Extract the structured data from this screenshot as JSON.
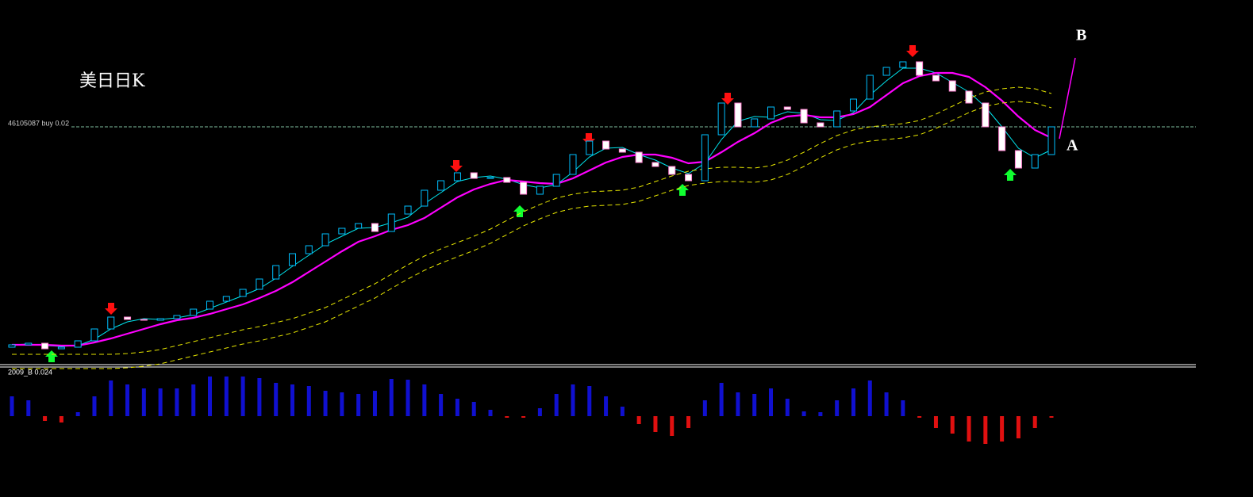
{
  "chart_data": [
    {
      "type": "candlestick",
      "annotations": [
        "美日日K",
        "A",
        "B"
      ],
      "order_label": "46105087 buy 0.02",
      "order_price": 300,
      "ylim": [
        0,
        460
      ],
      "up_color": "#00bfff",
      "down_color": "#ff7fd0",
      "open": [
        22,
        25,
        27,
        20,
        22,
        30,
        45,
        60,
        57,
        56,
        58,
        62,
        70,
        80,
        86,
        95,
        108,
        125,
        140,
        150,
        165,
        172,
        178,
        168,
        190,
        200,
        220,
        232,
        242,
        235,
        236,
        230,
        215,
        225,
        240,
        265,
        282,
        272,
        268,
        255,
        250,
        240,
        232,
        290,
        330,
        300,
        310,
        325,
        322,
        305,
        300,
        320,
        335,
        365,
        375,
        382,
        365,
        358,
        345,
        330,
        300,
        270,
        248,
        265
      ],
      "close": [
        25,
        27,
        20,
        22,
        30,
        45,
        60,
        57,
        56,
        58,
        62,
        70,
        80,
        86,
        95,
        108,
        125,
        140,
        150,
        165,
        172,
        178,
        168,
        190,
        200,
        220,
        232,
        242,
        235,
        236,
        230,
        215,
        225,
        240,
        265,
        282,
        272,
        268,
        255,
        250,
        240,
        232,
        290,
        330,
        300,
        310,
        325,
        322,
        305,
        300,
        320,
        335,
        365,
        375,
        382,
        365,
        358,
        345,
        330,
        300,
        270,
        248,
        265,
        300
      ],
      "lines": [
        {
          "color": "#00e5ee",
          "style": "solid",
          "values": [
            25,
            26,
            24,
            23,
            24,
            32,
            45,
            54,
            58,
            57,
            59,
            63,
            71,
            79,
            87,
            96,
            109,
            124,
            138,
            152,
            162,
            172,
            173,
            179,
            186,
            203,
            217,
            231,
            236,
            238,
            234,
            227,
            223,
            227,
            243,
            262,
            273,
            274,
            265,
            258,
            248,
            241,
            254,
            284,
            307,
            313,
            312,
            319,
            317,
            309,
            308,
            318,
            340,
            358,
            374,
            374,
            368,
            356,
            344,
            325,
            300,
            273,
            261,
            271
          ]
        },
        {
          "color": "#ff00ff",
          "style": "thick",
          "values": [
            25,
            25,
            25,
            24,
            24,
            28,
            33,
            39,
            45,
            51,
            56,
            59,
            64,
            70,
            76,
            84,
            93,
            104,
            117,
            130,
            143,
            155,
            162,
            170,
            176,
            185,
            198,
            211,
            221,
            228,
            233,
            231,
            229,
            228,
            235,
            245,
            255,
            262,
            265,
            265,
            261,
            254,
            256,
            268,
            281,
            292,
            305,
            313,
            315,
            312,
            312,
            316,
            325,
            340,
            355,
            364,
            368,
            368,
            363,
            350,
            333,
            313,
            296,
            286
          ]
        },
        {
          "color": "#e6e600",
          "style": "dashed",
          "values": [
            13,
            13,
            13,
            13,
            13,
            13,
            13,
            14,
            16,
            19,
            24,
            29,
            34,
            39,
            44,
            48,
            53,
            58,
            65,
            72,
            82,
            92,
            102,
            114,
            126,
            137,
            146,
            154,
            162,
            171,
            182,
            193,
            202,
            210,
            215,
            218,
            219,
            220,
            224,
            231,
            238,
            244,
            247,
            249,
            249,
            248,
            251,
            258,
            268,
            279,
            289,
            296,
            300,
            302,
            304,
            308,
            316,
            326,
            336,
            344,
            348,
            350,
            348,
            342
          ]
        },
        {
          "color": "#e6e600",
          "style": "dashed",
          "values": [
            -5,
            -5,
            -5,
            -5,
            -5,
            -5,
            -5,
            -4,
            -2,
            1,
            6,
            11,
            16,
            21,
            26,
            30,
            35,
            40,
            47,
            54,
            64,
            74,
            84,
            96,
            108,
            119,
            128,
            136,
            144,
            153,
            164,
            175,
            184,
            192,
            197,
            200,
            201,
            202,
            206,
            213,
            220,
            226,
            229,
            231,
            231,
            230,
            233,
            240,
            250,
            261,
            271,
            278,
            282,
            284,
            286,
            290,
            298,
            308,
            318,
            326,
            330,
            332,
            330,
            324
          ]
        }
      ]
    },
    {
      "type": "bar",
      "title": "2009_B 0.024",
      "ylim": [
        -102,
        60
      ],
      "positive_color": "#1010d0",
      "negative_color": "#e01010",
      "values": [
        25,
        20,
        -6,
        -8,
        5,
        25,
        45,
        40,
        35,
        35,
        35,
        40,
        50,
        50,
        50,
        48,
        42,
        40,
        38,
        32,
        30,
        28,
        32,
        47,
        46,
        40,
        28,
        22,
        18,
        8,
        -2,
        -2,
        10,
        28,
        40,
        38,
        25,
        12,
        -10,
        -20,
        -25,
        -15,
        20,
        42,
        30,
        28,
        35,
        22,
        6,
        5,
        20,
        35,
        45,
        30,
        20,
        -2,
        -15,
        -22,
        -32,
        -35,
        -32,
        -28,
        -15,
        -2
      ]
    }
  ]
}
